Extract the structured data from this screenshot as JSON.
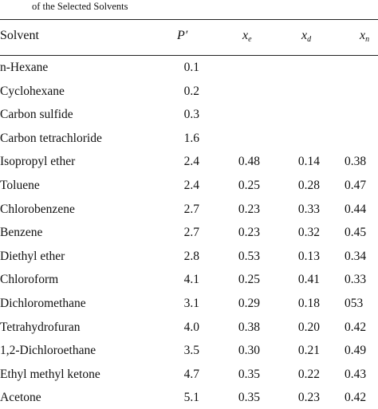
{
  "caption": "of the Selected Solvents",
  "header": {
    "solvent": "Solvent",
    "p": "P′",
    "xe_base": "x",
    "xe_sub": "e",
    "xd_base": "x",
    "xd_sub": "d",
    "xn_base": "x",
    "xn_sub": "n"
  },
  "rows": [
    {
      "solvent": "n-Hexane",
      "p": "0.1",
      "xe": "",
      "xd": "",
      "xn": ""
    },
    {
      "solvent": "Cyclohexane",
      "p": "0.2",
      "xe": "",
      "xd": "",
      "xn": ""
    },
    {
      "solvent": "Carbon sulfide",
      "p": "0.3",
      "xe": "",
      "xd": "",
      "xn": ""
    },
    {
      "solvent": "Carbon tetrachloride",
      "p": "1.6",
      "xe": "",
      "xd": "",
      "xn": ""
    },
    {
      "solvent": "Isopropyl ether",
      "p": "2.4",
      "xe": "0.48",
      "xd": "0.14",
      "xn": "0.38"
    },
    {
      "solvent": "Toluene",
      "p": "2.4",
      "xe": "0.25",
      "xd": "0.28",
      "xn": "0.47"
    },
    {
      "solvent": "Chlorobenzene",
      "p": "2.7",
      "xe": "0.23",
      "xd": "0.33",
      "xn": "0.44"
    },
    {
      "solvent": "Benzene",
      "p": "2.7",
      "xe": "0.23",
      "xd": "0.32",
      "xn": "0.45"
    },
    {
      "solvent": "Diethyl ether",
      "p": "2.8",
      "xe": "0.53",
      "xd": "0.13",
      "xn": "0.34"
    },
    {
      "solvent": "Chloroform",
      "p": "4.1",
      "xe": "0.25",
      "xd": "0.41",
      "xn": "0.33"
    },
    {
      "solvent": "Dichloromethane",
      "p": "3.1",
      "xe": "0.29",
      "xd": "0.18",
      "xn": "053"
    },
    {
      "solvent": "Tetrahydrofuran",
      "p": "4.0",
      "xe": "0.38",
      "xd": "0.20",
      "xn": "0.42"
    },
    {
      "solvent": "1,2-Dichloroethane",
      "p": "3.5",
      "xe": "0.30",
      "xd": "0.21",
      "xn": "0.49"
    },
    {
      "solvent": "Ethyl methyl ketone",
      "p": "4.7",
      "xe": "0.35",
      "xd": "0.22",
      "xn": "0.43"
    },
    {
      "solvent": "Acetone",
      "p": "5.1",
      "xe": "0.35",
      "xd": "0.23",
      "xn": "0.42"
    }
  ]
}
